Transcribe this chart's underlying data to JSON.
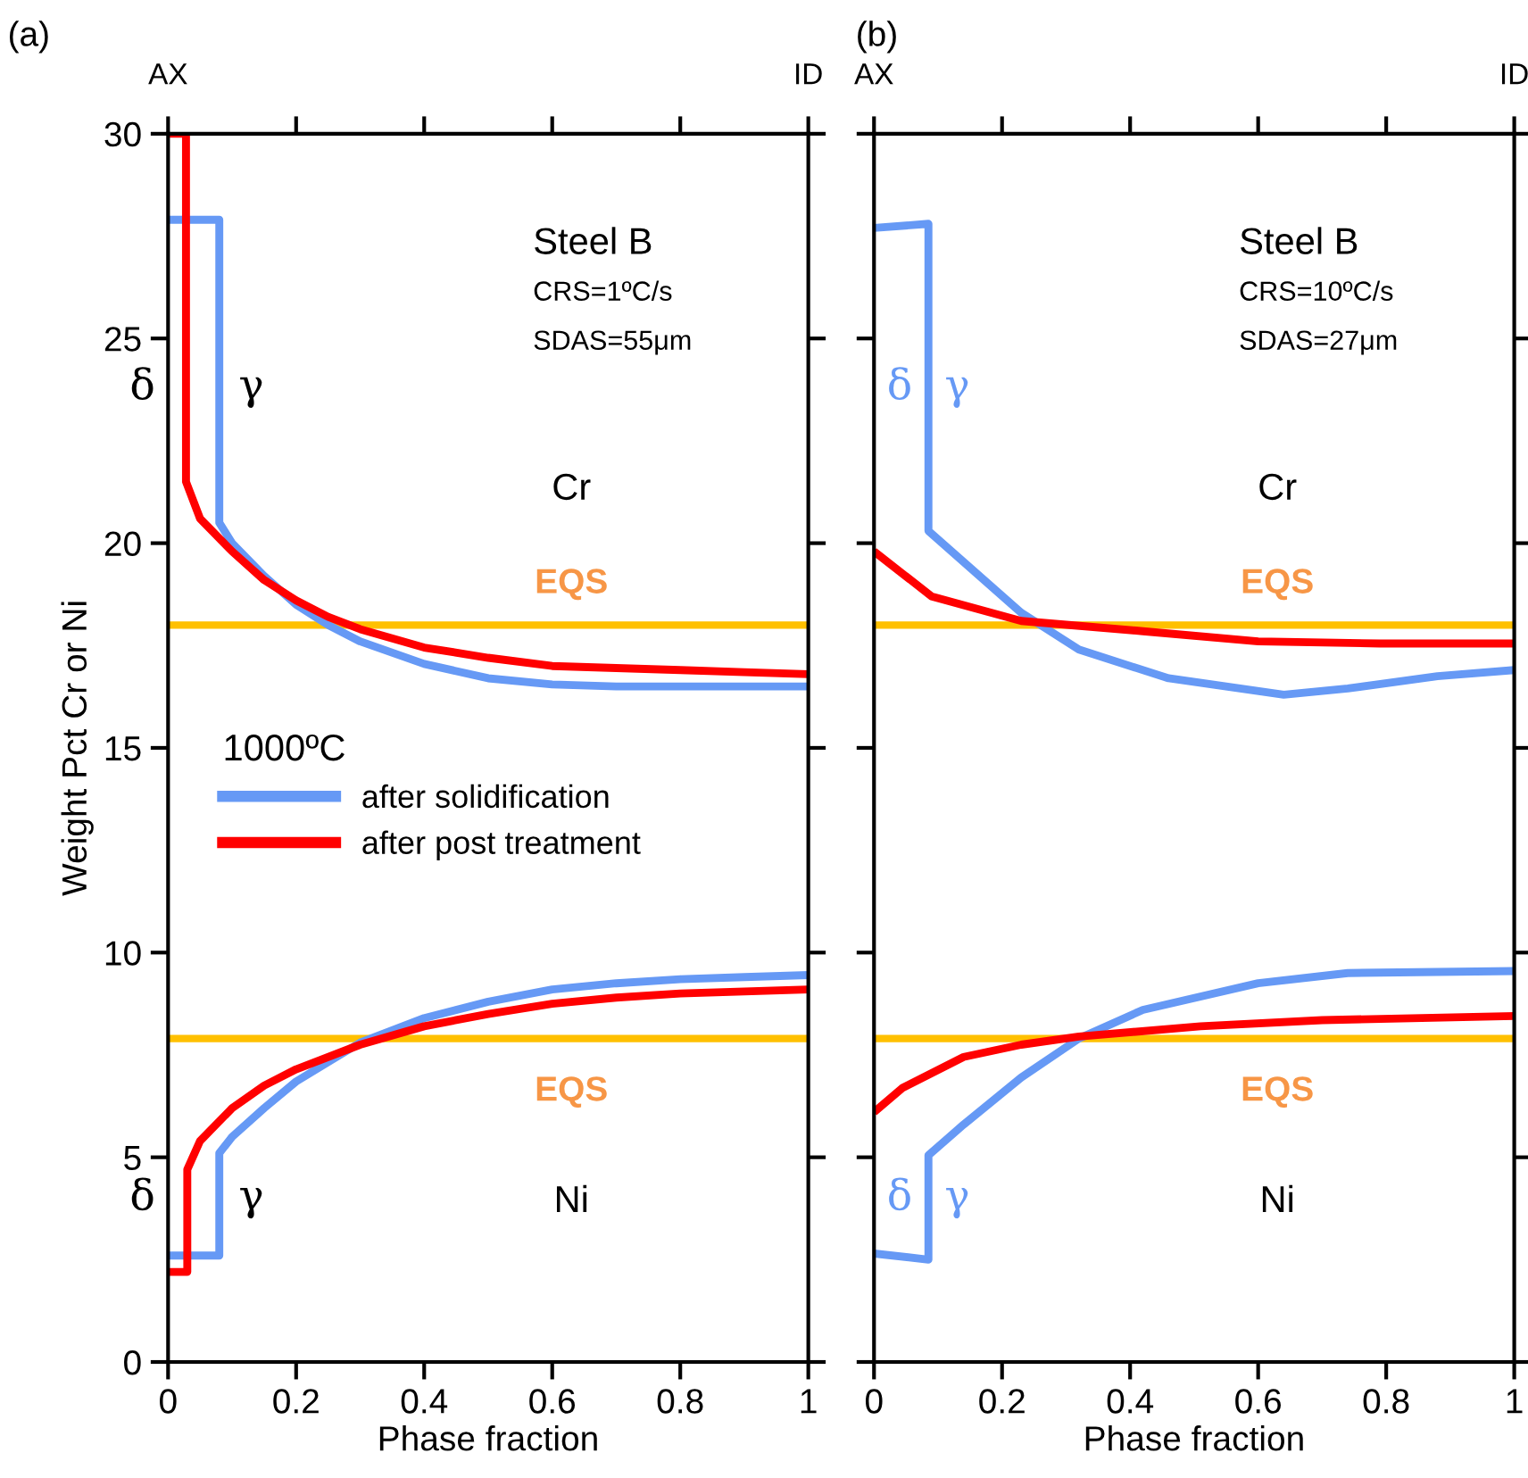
{
  "chart_data": [
    {
      "type": "line",
      "title": "(a)",
      "xlabel": "Phase fraction",
      "ylabel": "Weight Pct Cr or Ni",
      "legend_title": "1000ºC",
      "legend": "center left",
      "xlim": [
        0,
        1
      ],
      "xticks": [
        0,
        0.2,
        0.4,
        0.6,
        0.8,
        1
      ],
      "ylim": [
        0,
        30
      ],
      "yticks": [
        0,
        5,
        10,
        15,
        20,
        25,
        30
      ],
      "annotations": [
        "Steel B",
        "CRS=1ºC/s",
        "SDAS=55μm",
        "Cr",
        "Ni",
        "δ",
        "γ",
        "δ",
        "γ",
        "AX",
        "ID"
      ],
      "ref_lines": [
        {
          "axis": "y",
          "value": 18,
          "label": "EQS",
          "color": "#ffc000"
        },
        {
          "axis": "y",
          "value": 7.9,
          "label": "EQS",
          "color": "#ffc000"
        }
      ],
      "series": [
        {
          "name": "after solidification",
          "color": "#6699f5",
          "x": [
            0,
            0.08,
            0.08,
            0.1,
            0.15,
            0.2,
            0.25,
            0.3,
            0.4,
            0.5,
            0.6,
            0.7,
            0.8,
            1
          ],
          "values": [
            27.9,
            27.9,
            20.5,
            20.0,
            19.2,
            18.5,
            18.0,
            17.6,
            17.05,
            16.7,
            16.55,
            16.5,
            16.5,
            16.5
          ]
        },
        {
          "name": "after post treatment",
          "color": "#ff0000",
          "x": [
            0,
            0.028,
            0.028,
            0.05,
            0.1,
            0.15,
            0.2,
            0.25,
            0.3,
            0.4,
            0.5,
            0.6,
            0.7,
            0.8,
            0.9,
            1
          ],
          "values": [
            30,
            30,
            21.5,
            20.6,
            19.8,
            19.1,
            18.6,
            18.2,
            17.9,
            17.45,
            17.2,
            17.0,
            16.95,
            16.9,
            16.85,
            16.8
          ]
        },
        {
          "color": "#6699f5",
          "x": [
            0,
            0.08,
            0.08,
            0.1,
            0.15,
            0.2,
            0.3,
            0.4,
            0.5,
            0.6,
            0.7,
            0.8,
            0.9,
            1
          ],
          "values": [
            2.6,
            2.6,
            5.1,
            5.5,
            6.2,
            6.85,
            7.8,
            8.4,
            8.8,
            9.1,
            9.25,
            9.35,
            9.4,
            9.45
          ]
        },
        {
          "color": "#ff0000",
          "x": [
            0,
            0.03,
            0.03,
            0.05,
            0.1,
            0.15,
            0.2,
            0.3,
            0.4,
            0.5,
            0.6,
            0.7,
            0.8,
            0.9,
            1
          ],
          "values": [
            2.2,
            2.2,
            4.7,
            5.4,
            6.2,
            6.75,
            7.15,
            7.75,
            8.2,
            8.5,
            8.75,
            8.9,
            9.0,
            9.05,
            9.1
          ]
        }
      ]
    },
    {
      "type": "line",
      "title": "(b)",
      "xlabel": "Phase fraction",
      "tick_labels": "x",
      "xlim": [
        0,
        1
      ],
      "xticks": [
        0,
        0.2,
        0.4,
        0.6,
        0.8,
        1
      ],
      "ylim": [
        0,
        30
      ],
      "yticks": [
        0,
        5,
        10,
        15,
        20,
        25,
        30
      ],
      "annotations": [
        "Steel B",
        "CRS=10ºC/s",
        "SDAS=27μm",
        "Cr",
        "Ni",
        "δ",
        "γ",
        "δ",
        "γ",
        "AX",
        "ID"
      ],
      "ref_lines": [
        {
          "axis": "y",
          "value": 18,
          "label": "EQS",
          "color": "#ffc000"
        },
        {
          "axis": "y",
          "value": 7.9,
          "label": "EQS",
          "color": "#ffc000"
        }
      ],
      "series": [
        {
          "color": "#6699f5",
          "x": [
            0,
            0.085,
            0.085,
            0.23,
            0.32,
            0.46,
            0.64,
            0.74,
            0.88,
            1
          ],
          "values": [
            27.7,
            27.8,
            20.3,
            18.3,
            17.4,
            16.7,
            16.3,
            16.45,
            16.75,
            16.9
          ]
        },
        {
          "color": "#ff0000",
          "x": [
            0,
            0.09,
            0.23,
            0.42,
            0.6,
            0.79,
            1
          ],
          "values": [
            19.8,
            18.7,
            18.1,
            17.85,
            17.6,
            17.55,
            17.55
          ]
        },
        {
          "color": "#6699f5",
          "x": [
            0,
            0.085,
            0.085,
            0.14,
            0.23,
            0.32,
            0.42,
            0.6,
            0.74,
            1
          ],
          "values": [
            2.65,
            2.5,
            5.05,
            5.8,
            6.95,
            7.9,
            8.6,
            9.25,
            9.5,
            9.55
          ]
        },
        {
          "color": "#ff0000",
          "x": [
            0,
            0.045,
            0.14,
            0.23,
            0.32,
            0.51,
            0.7,
            1
          ],
          "values": [
            6.1,
            6.7,
            7.45,
            7.75,
            7.95,
            8.2,
            8.35,
            8.45
          ]
        }
      ]
    }
  ]
}
